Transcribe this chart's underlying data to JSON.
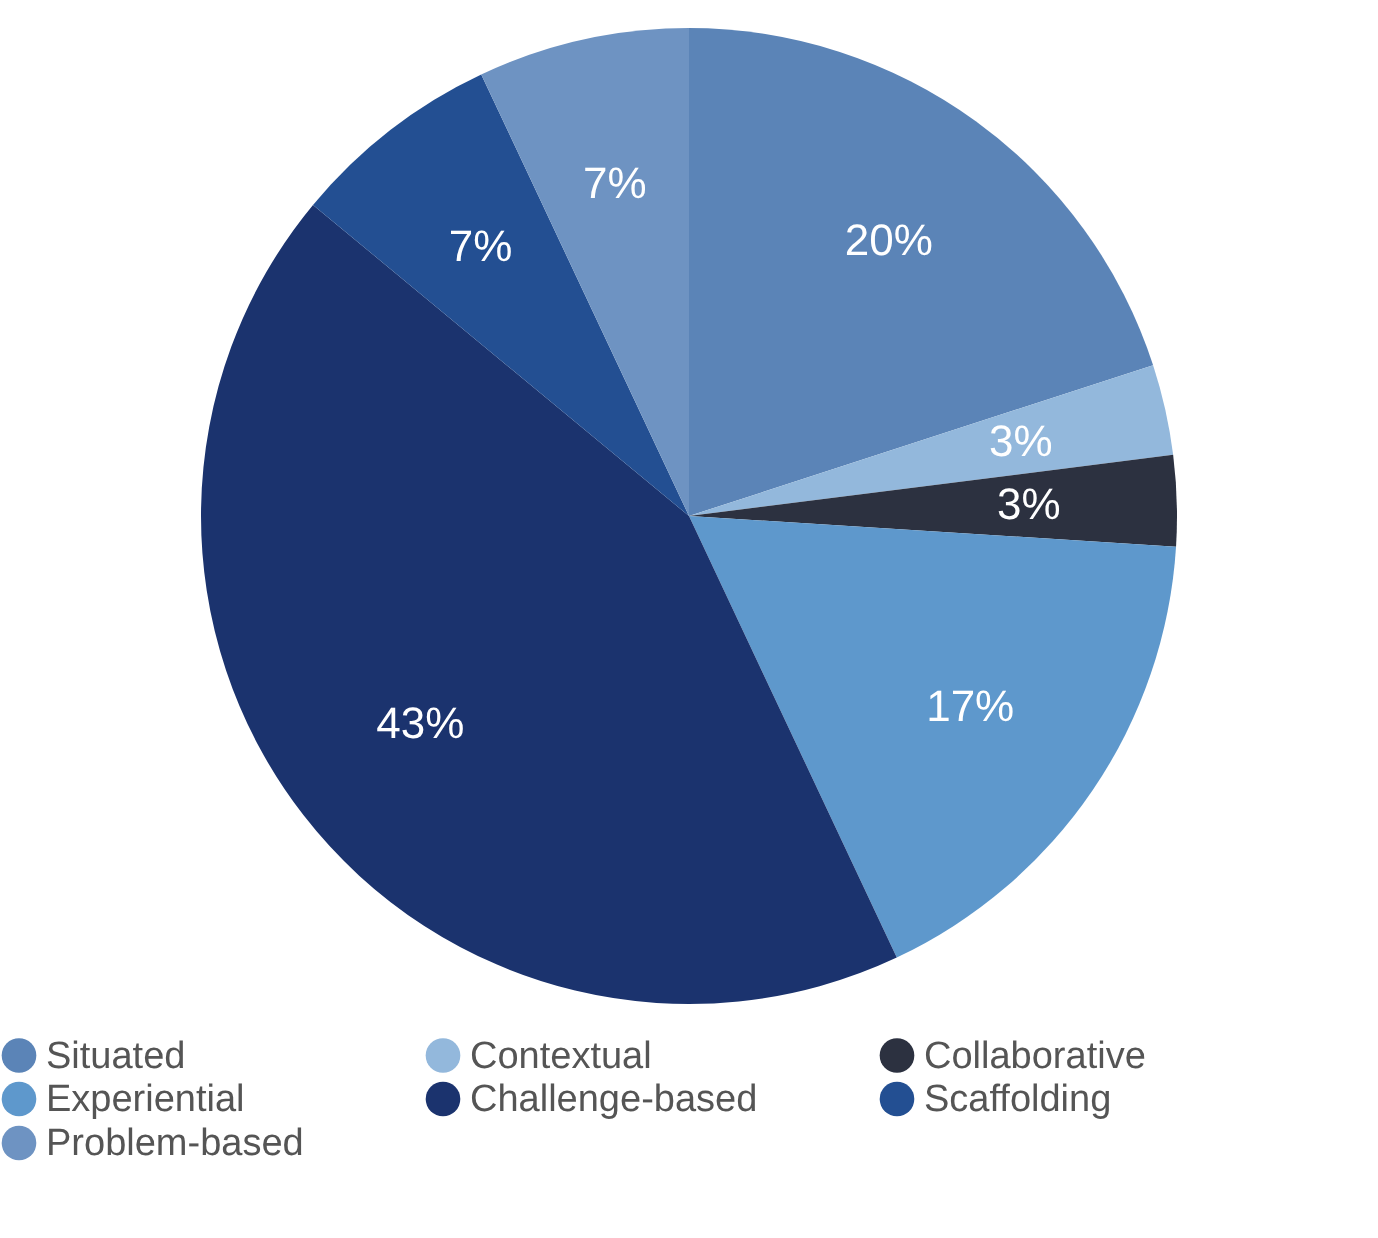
{
  "chart_data": {
    "type": "pie",
    "categories": [
      "Situated",
      "Contextual",
      "Collaborative",
      "Experiential",
      "Challenge-based",
      "Scaffolding",
      "Problem-based"
    ],
    "values": [
      20,
      3,
      3,
      17,
      43,
      7,
      7
    ],
    "colors": [
      "#5b84b7",
      "#93b8dc",
      "#2c3140",
      "#5e98cc",
      "#1b336e",
      "#234f92",
      "#6e93c2"
    ],
    "value_labels": [
      "20%",
      "3%",
      "3%",
      "17%",
      "43%",
      "7%",
      "7%"
    ],
    "legend": "bottom"
  }
}
